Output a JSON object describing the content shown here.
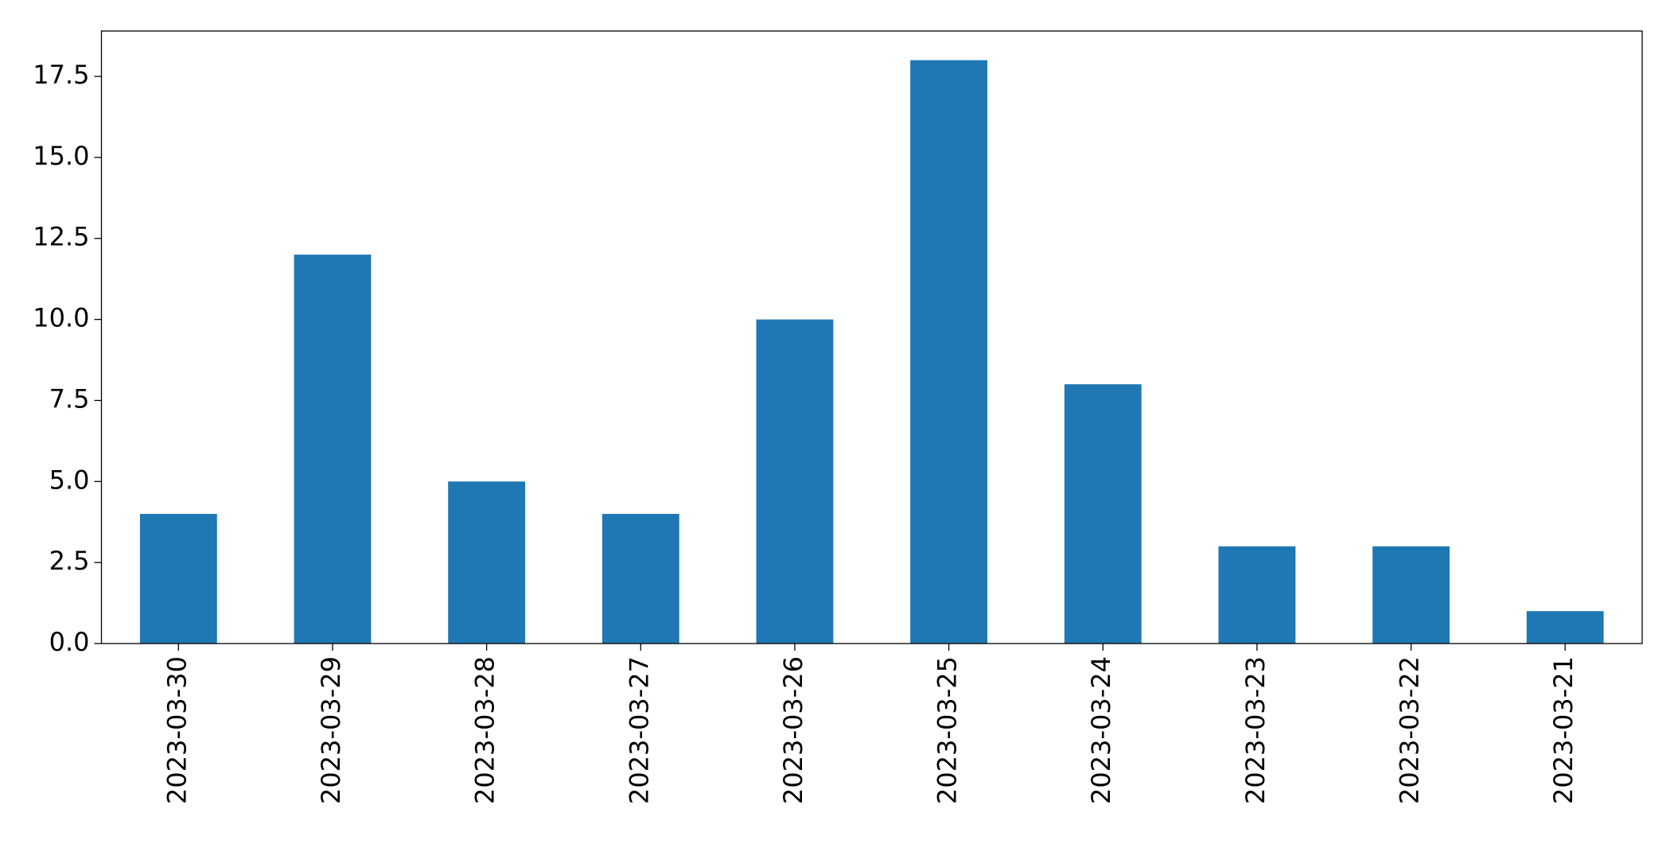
{
  "chart_data": {
    "type": "bar",
    "categories": [
      "2023-03-30",
      "2023-03-29",
      "2023-03-28",
      "2023-03-27",
      "2023-03-26",
      "2023-03-25",
      "2023-03-24",
      "2023-03-23",
      "2023-03-22",
      "2023-03-21"
    ],
    "values": [
      4,
      12,
      5,
      4,
      10,
      18,
      8,
      3,
      3,
      1
    ],
    "color": "#1f77b4",
    "ylim": [
      0,
      18.9
    ],
    "yticks": [
      {
        "value": 0,
        "label": "0.0"
      },
      2.5,
      {
        "value": 5,
        "label": "5.0"
      },
      7.5,
      {
        "value": 10,
        "label": "10.0"
      },
      12.5,
      {
        "value": 15,
        "label": "15.0"
      },
      17.5
    ],
    "grid": false
  }
}
